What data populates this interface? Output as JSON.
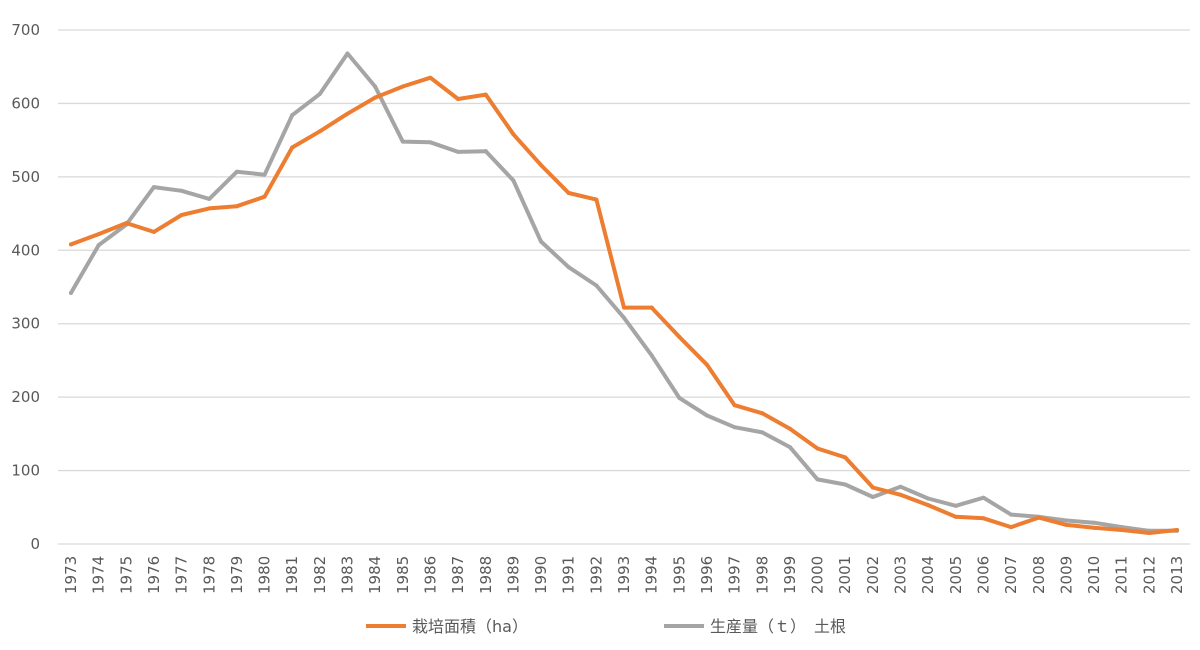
{
  "chart_data": {
    "type": "line",
    "title": "",
    "xlabel": "",
    "ylabel": "",
    "ylim": [
      0,
      700
    ],
    "yticks": [
      "0",
      "100",
      "200",
      "300",
      "400",
      "500",
      "600",
      "700"
    ],
    "grid": true,
    "legend_position": "bottom",
    "x": [
      "1973",
      "1974",
      "1975",
      "1976",
      "1977",
      "1978",
      "1979",
      "1980",
      "1981",
      "1982",
      "1983",
      "1984",
      "1985",
      "1986",
      "1987",
      "1988",
      "1989",
      "1990",
      "1991",
      "1992",
      "1993",
      "1994",
      "1995",
      "1996",
      "1997",
      "1998",
      "1999",
      "2000",
      "2001",
      "2002",
      "2003",
      "2004",
      "2005",
      "2006",
      "2007",
      "2008",
      "2009",
      "2010",
      "2011",
      "2012",
      "2013"
    ],
    "series": [
      {
        "name": "栽培面積（ha）",
        "color": "#ED7D31",
        "values": [
          408,
          422,
          437,
          425,
          448,
          457,
          460,
          473,
          540,
          562,
          586,
          608,
          623,
          635,
          606,
          612,
          558,
          516,
          478,
          469,
          322,
          322,
          282,
          244,
          189,
          178,
          157,
          130,
          118,
          77,
          67,
          53,
          37,
          35,
          23,
          36,
          26,
          22,
          19,
          15,
          19
        ]
      },
      {
        "name": "生産量（ｔ）　土根",
        "color": "#A5A5A5",
        "values": [
          342,
          407,
          435,
          486,
          481,
          470,
          507,
          503,
          584,
          613,
          668,
          623,
          548,
          547,
          534,
          535,
          495,
          412,
          377,
          352,
          308,
          257,
          199,
          175,
          159,
          152,
          132,
          88,
          81,
          64,
          78,
          62,
          52,
          63,
          40,
          37,
          32,
          29,
          23,
          18,
          18
        ]
      }
    ]
  }
}
